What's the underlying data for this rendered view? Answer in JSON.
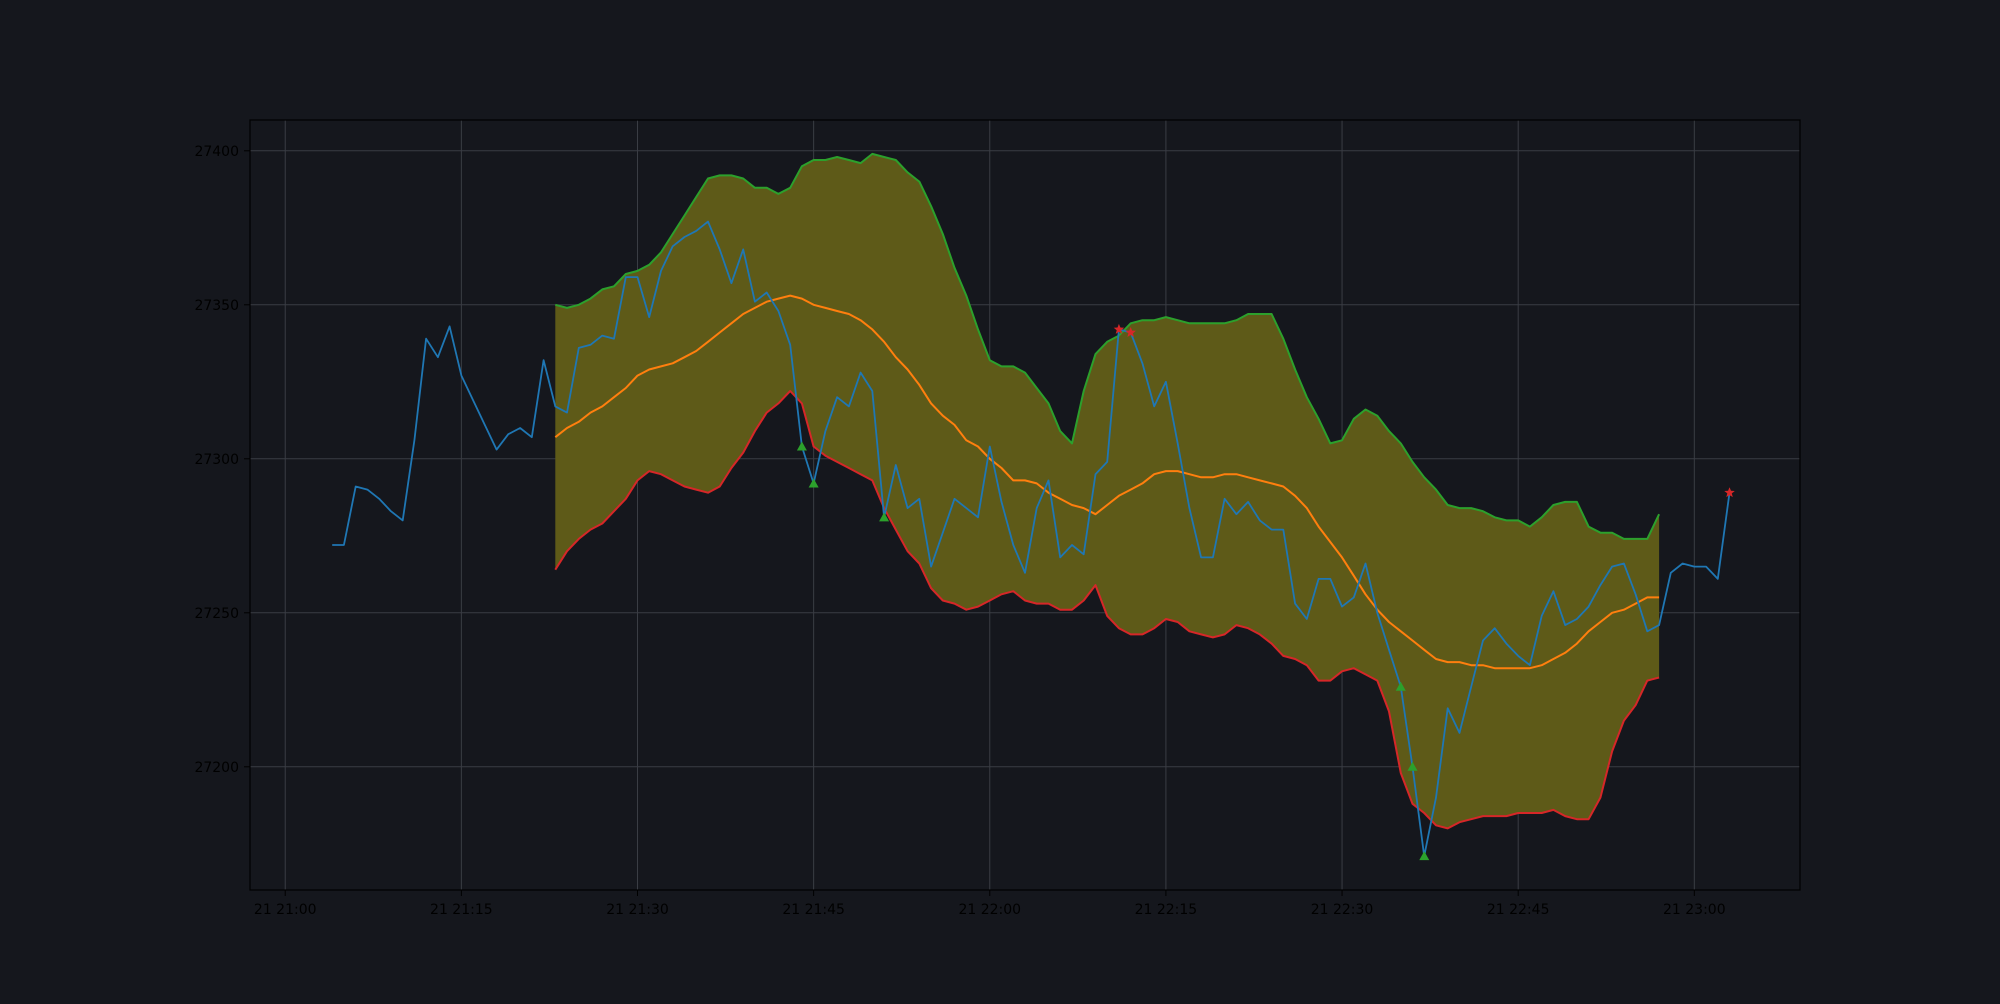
{
  "chart_data": {
    "type": "line",
    "title": "",
    "xlabel": "",
    "ylabel": "",
    "grid": true,
    "background": "#15171d",
    "xlim": [
      "21 20:57",
      "21 23:09"
    ],
    "ylim": [
      27160,
      27410
    ],
    "x_ticks": [
      "21 21:00",
      "21 21:15",
      "21 21:30",
      "21 21:45",
      "21 22:00",
      "21 22:15",
      "21 22:30",
      "21 22:45",
      "21 23:00"
    ],
    "y_ticks": [
      "27200",
      "27250",
      "27300",
      "27350",
      "27400"
    ],
    "x_tick_times": [
      "21:00",
      "21:15",
      "21:30",
      "21:45",
      "22:00",
      "22:15",
      "22:30",
      "22:45",
      "23:00"
    ],
    "y_tick_values": [
      27200,
      27250,
      27300,
      27350,
      27400
    ],
    "band_fill_color": "#5e5a18",
    "series": [
      {
        "role": "price",
        "color": "#1f77b4",
        "start_time": "21:04",
        "values": [
          27272,
          27272,
          27291,
          27290,
          27287,
          27283,
          27280,
          27306,
          27339,
          27333,
          27343,
          27327,
          27319,
          27311,
          27303,
          27308,
          27310,
          27307,
          27332,
          27317,
          27315,
          27336,
          27337,
          27340,
          27339,
          27359,
          27359,
          27346,
          27361,
          27369,
          27372,
          27374,
          27377,
          27368,
          27357,
          27368,
          27351,
          27354,
          27348,
          27337,
          27304,
          27292,
          27309,
          27320,
          27317,
          27328,
          27322,
          27281,
          27298,
          27284,
          27287,
          27265,
          27276,
          27287,
          27284,
          27281,
          27304,
          27286,
          27272,
          27263,
          27284,
          27293,
          27268,
          27272,
          27269,
          27295,
          27299,
          27342,
          27341,
          27331,
          27317,
          27325,
          27305,
          27284,
          27268,
          27268,
          27287,
          27282,
          27286,
          27280,
          27277,
          27277,
          27253,
          27248,
          27261,
          27261,
          27252,
          27255,
          27266,
          27250,
          27238,
          27226,
          27200,
          27171,
          27190,
          27219,
          27211,
          27226,
          27241,
          27245,
          27240,
          27236,
          27233,
          27249,
          27257,
          27246,
          27248,
          27252,
          27259,
          27265,
          27266,
          27256,
          27244,
          27246,
          27263,
          27266,
          27265,
          27265,
          27261,
          27289
        ]
      },
      {
        "role": "upper-band",
        "color": "#2ca02c",
        "start_time": "21:23",
        "values": [
          27350,
          27349,
          27350,
          27352,
          27355,
          27356,
          27360,
          27361,
          27363,
          27367,
          27373,
          27379,
          27385,
          27391,
          27392,
          27392,
          27391,
          27388,
          27388,
          27386,
          27388,
          27395,
          27397,
          27397,
          27398,
          27397,
          27396,
          27399,
          27398,
          27397,
          27393,
          27390,
          27382,
          27373,
          27362,
          27353,
          27342,
          27332,
          27330,
          27330,
          27328,
          27323,
          27318,
          27309,
          27305,
          27322,
          27334,
          27338,
          27340,
          27344,
          27345,
          27345,
          27346,
          27345,
          27344,
          27344,
          27344,
          27344,
          27345,
          27347,
          27347,
          27347,
          27339,
          27329,
          27320,
          27313,
          27305,
          27306,
          27313,
          27316,
          27314,
          27309,
          27305,
          27299,
          27294,
          27290,
          27285,
          27284,
          27284,
          27283,
          27281,
          27280,
          27280,
          27278,
          27281,
          27285,
          27286,
          27286,
          27278,
          27276,
          27276,
          27274,
          27274,
          27274,
          27282
        ]
      },
      {
        "role": "middle-band",
        "color": "#ff7f0e",
        "start_time": "21:23",
        "values": [
          27307,
          27310,
          27312,
          27315,
          27317,
          27320,
          27323,
          27327,
          27329,
          27330,
          27331,
          27333,
          27335,
          27338,
          27341,
          27344,
          27347,
          27349,
          27351,
          27352,
          27353,
          27352,
          27350,
          27349,
          27348,
          27347,
          27345,
          27342,
          27338,
          27333,
          27329,
          27324,
          27318,
          27314,
          27311,
          27306,
          27304,
          27300,
          27297,
          27293,
          27293,
          27292,
          27289,
          27287,
          27285,
          27284,
          27282,
          27285,
          27288,
          27290,
          27292,
          27295,
          27296,
          27296,
          27295,
          27294,
          27294,
          27295,
          27295,
          27294,
          27293,
          27292,
          27291,
          27288,
          27284,
          27278,
          27273,
          27268,
          27262,
          27256,
          27251,
          27247,
          27244,
          27241,
          27238,
          27235,
          27234,
          27234,
          27233,
          27233,
          27232,
          27232,
          27232,
          27232,
          27233,
          27235,
          27237,
          27240,
          27244,
          27247,
          27250,
          27251,
          27253,
          27255,
          27255
        ]
      },
      {
        "role": "lower-band",
        "color": "#d62728",
        "start_time": "21:23",
        "values": [
          27264,
          27270,
          27274,
          27277,
          27279,
          27283,
          27287,
          27293,
          27296,
          27295,
          27293,
          27291,
          27290,
          27289,
          27291,
          27297,
          27302,
          27309,
          27315,
          27318,
          27322,
          27318,
          27304,
          27301,
          27299,
          27297,
          27295,
          27293,
          27284,
          27277,
          27270,
          27266,
          27258,
          27254,
          27253,
          27251,
          27252,
          27254,
          27256,
          27257,
          27254,
          27253,
          27253,
          27251,
          27251,
          27254,
          27259,
          27249,
          27245,
          27243,
          27243,
          27245,
          27248,
          27247,
          27244,
          27243,
          27242,
          27243,
          27246,
          27245,
          27243,
          27240,
          27236,
          27235,
          27233,
          27228,
          27228,
          27231,
          27232,
          27230,
          27228,
          27218,
          27198,
          27188,
          27185,
          27181,
          27180,
          27182,
          27183,
          27184,
          27184,
          27184,
          27185,
          27185,
          27185,
          27186,
          27184,
          27183,
          27183,
          27190,
          27205,
          27215,
          27220,
          27228,
          27229
        ]
      }
    ],
    "markers": [
      {
        "type": "buy",
        "shape": "triangle-up",
        "color": "#2ca02c",
        "time": "21:44",
        "value": 27304
      },
      {
        "type": "buy",
        "shape": "triangle-up",
        "color": "#2ca02c",
        "time": "21:45",
        "value": 27292
      },
      {
        "type": "buy",
        "shape": "triangle-up",
        "color": "#2ca02c",
        "time": "21:51",
        "value": 27281
      },
      {
        "type": "buy",
        "shape": "triangle-up",
        "color": "#2ca02c",
        "time": "22:35",
        "value": 27226
      },
      {
        "type": "buy",
        "shape": "triangle-up",
        "color": "#2ca02c",
        "time": "22:36",
        "value": 27200
      },
      {
        "type": "buy",
        "shape": "triangle-up",
        "color": "#2ca02c",
        "time": "22:37",
        "value": 27171
      },
      {
        "type": "sell",
        "shape": "star",
        "color": "#d62728",
        "time": "22:11",
        "value": 27342
      },
      {
        "type": "sell",
        "shape": "star",
        "color": "#d62728",
        "time": "22:12",
        "value": 27341
      },
      {
        "type": "sell",
        "shape": "star",
        "color": "#d62728",
        "time": "23:03",
        "value": 27289
      }
    ]
  }
}
